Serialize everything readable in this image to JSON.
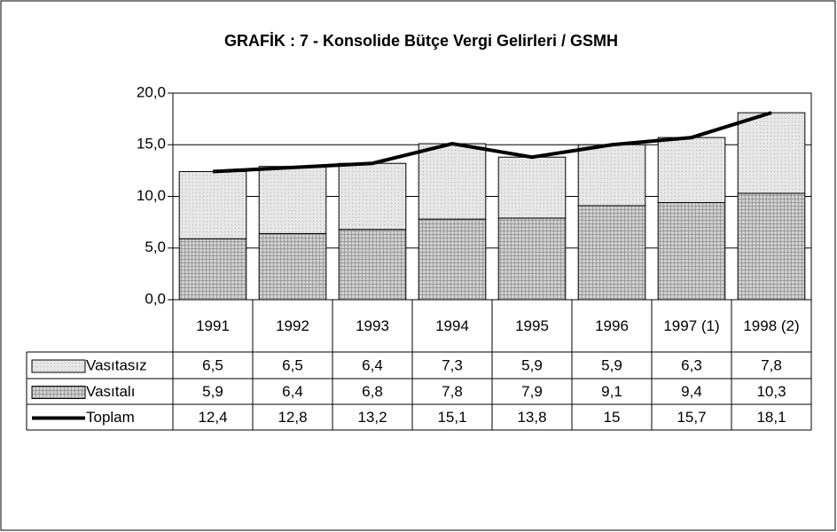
{
  "chart_data": {
    "type": "bar",
    "stacked": true,
    "title": "GRAFİK : 7 - Konsolide Bütçe Vergi Gelirleri / GSMH",
    "categories": [
      "1991",
      "1992",
      "1993",
      "1994",
      "1995",
      "1996",
      "1997 (1)",
      "1998 (2)"
    ],
    "series": [
      {
        "name": "Vasıtasız",
        "type": "bar",
        "color": "#e6e6e6",
        "pattern": "dots",
        "values": [
          6.5,
          6.5,
          6.4,
          7.3,
          5.9,
          5.9,
          6.3,
          7.8
        ],
        "value_labels": [
          "6,5",
          "6,5",
          "6,4",
          "7,3",
          "5,9",
          "5,9",
          "6,3",
          "7,8"
        ]
      },
      {
        "name": "Vasıtalı",
        "type": "bar",
        "color": "#8c8c8c",
        "pattern": "grid",
        "values": [
          5.9,
          6.4,
          6.8,
          7.8,
          7.9,
          9.1,
          9.4,
          10.3
        ],
        "value_labels": [
          "5,9",
          "6,4",
          "6,8",
          "7,8",
          "7,9",
          "9,1",
          "9,4",
          "10,3"
        ]
      },
      {
        "name": "Toplam",
        "type": "line",
        "color": "#000000",
        "values": [
          12.4,
          12.8,
          13.2,
          15.1,
          13.8,
          15,
          15.7,
          18.1
        ],
        "value_labels": [
          "12,4",
          "12,8",
          "13,2",
          "15,1",
          "13,8",
          "15",
          "15,7",
          "18,1"
        ]
      }
    ],
    "ylim": [
      0,
      20
    ],
    "yticks": [
      {
        "value": 0,
        "label": "0,0"
      },
      {
        "value": 5,
        "label": "5,0"
      },
      {
        "value": 10,
        "label": "10,0"
      },
      {
        "value": 15,
        "label": "15,0"
      },
      {
        "value": 20,
        "label": "20,0"
      }
    ],
    "grid": true
  }
}
